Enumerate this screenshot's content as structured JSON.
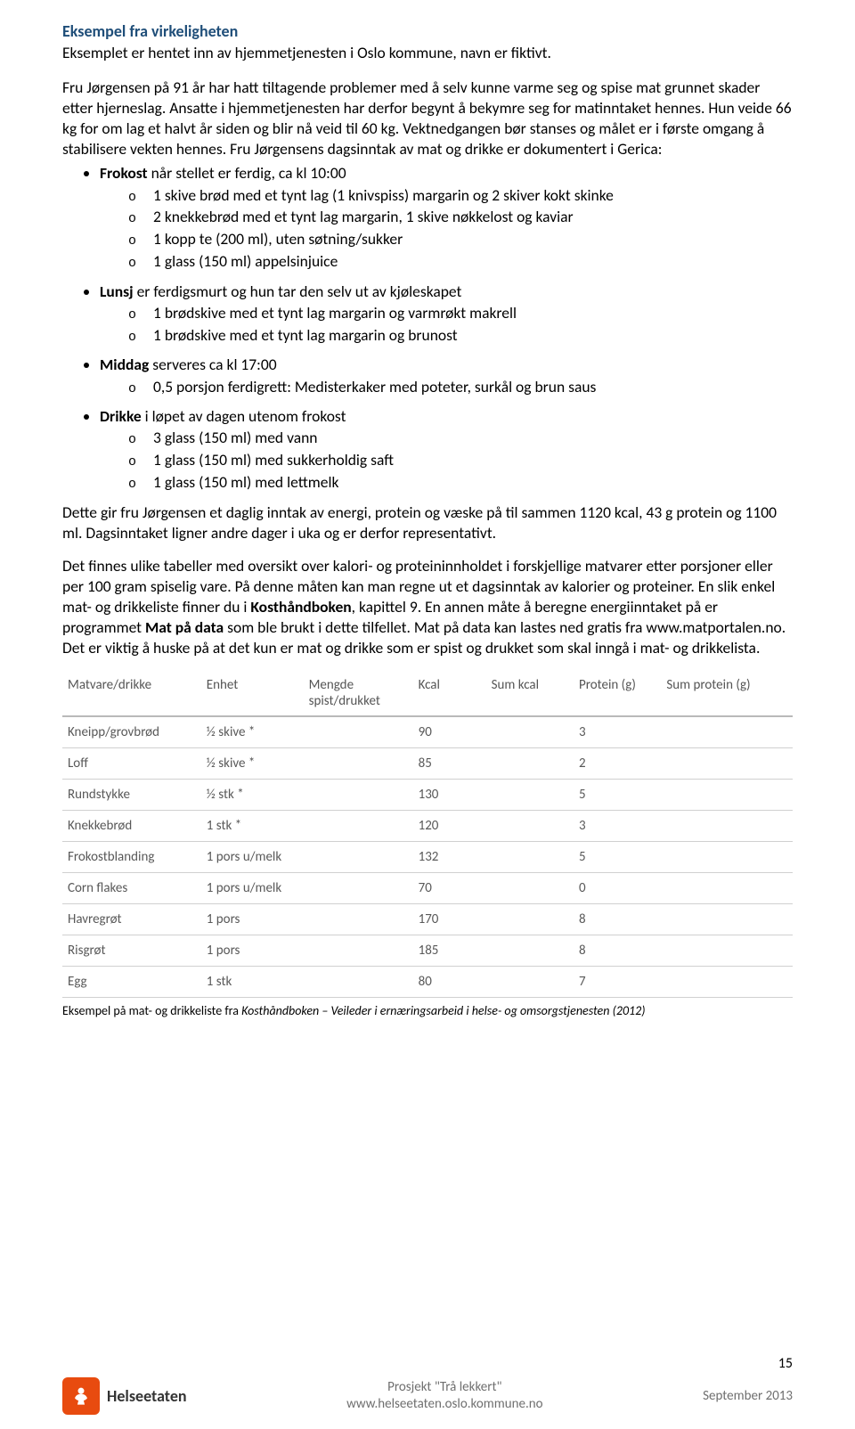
{
  "heading": "Eksempel fra virkeligheten",
  "intro": "Eksemplet er hentet inn av hjemmetjenesten i Oslo kommune, navn er fiktivt.",
  "para1": "Fru Jørgensen på 91 år har hatt tiltagende problemer med å selv kunne varme seg og spise mat grunnet skader etter hjerneslag. Ansatte i hjemmetjenesten har derfor begynt å bekymre seg for matinntaket hennes. Hun veide 66 kg for om lag et halvt år siden og blir nå veid til 60 kg. Vektnedgangen bør stanses og målet er i første omgang å stabilisere vekten hennes. Fru Jørgensens dagsinntak av mat og drikke er dokumentert i Gerica:",
  "frokost": {
    "label": "Frokost",
    "rest": " når stellet er ferdig, ca kl 10:00",
    "items": [
      "1 skive brød med et tynt lag (1 knivspiss) margarin og 2 skiver kokt skinke",
      "2 knekkebrød med et tynt lag margarin, 1 skive nøkkelost og kaviar",
      "1 kopp te (200 ml), uten søtning/sukker",
      "1 glass (150 ml) appelsinjuice"
    ]
  },
  "lunsj": {
    "label": "Lunsj",
    "rest": " er ferdigsmurt og hun tar den selv ut av kjøleskapet",
    "items": [
      "1 brødskive med et tynt lag margarin og varmrøkt makrell",
      "1 brødskive med et tynt lag margarin og brunost"
    ]
  },
  "middag": {
    "label": "Middag",
    "rest": " serveres ca kl 17:00",
    "items": [
      "0,5 porsjon ferdigrett: Medisterkaker med poteter, surkål og brun saus"
    ]
  },
  "drikke": {
    "label": "Drikke",
    "rest": " i løpet av dagen utenom frokost",
    "items": [
      "3 glass (150 ml) med vann",
      "1 glass (150 ml) med sukkerholdig saft",
      "1 glass (150 ml) med lettmelk"
    ]
  },
  "para2": "Dette gir fru Jørgensen et daglig inntak av energi, protein og væske på til sammen 1120 kcal, 43 g protein og 1100 ml. Dagsinntaket ligner andre dager i uka og er derfor representativt.",
  "para3a": "Det finnes ulike tabeller med oversikt over kalori- og proteininnholdet i forskjellige matvarer etter porsjoner eller per 100 gram spiselig vare. På denne måten kan man regne ut et dagsinntak av kalorier og proteiner. En slik enkel mat- og drikkeliste finner du i ",
  "para3_bold1": "Kosthåndboken",
  "para3b": ", kapittel 9. En annen måte å beregne energiinntaket på er programmet ",
  "para3_bold2": "Mat på data",
  "para3c": " som ble brukt i dette tilfellet. Mat på data kan lastes ned gratis fra www.matportalen.no. Det er viktig å huske på at det kun er mat og drikke som er spist og drukket som skal inngå i mat- og drikkelista.",
  "table": {
    "columns": [
      "Matvare/drikke",
      "Enhet",
      "Mengde spist/drukket",
      "Kcal",
      "Sum kcal",
      "Protein (g)",
      "Sum protein (g)"
    ],
    "col_widths": [
      "19%",
      "14%",
      "15%",
      "10%",
      "12%",
      "12%",
      "18%"
    ],
    "rows": [
      [
        "Kneipp/grovbrød",
        "½ skive *",
        "",
        "90",
        "",
        "3",
        ""
      ],
      [
        "Loff",
        "½ skive *",
        "",
        "85",
        "",
        "2",
        ""
      ],
      [
        "Rundstykke",
        "½ stk *",
        "",
        "130",
        "",
        "5",
        ""
      ],
      [
        "Knekkebrød",
        "1 stk *",
        "",
        "120",
        "",
        "3",
        ""
      ],
      [
        "Frokostblanding",
        "1 pors u/melk",
        "",
        "132",
        "",
        "5",
        ""
      ],
      [
        "Corn flakes",
        "1 pors u/melk",
        "",
        "70",
        "",
        "0",
        ""
      ],
      [
        "Havregrøt",
        "1 pors",
        "",
        "170",
        "",
        "8",
        ""
      ],
      [
        "Risgrøt",
        "1 pors",
        "",
        "185",
        "",
        "8",
        ""
      ],
      [
        "Egg",
        "1 stk",
        "",
        "80",
        "",
        "7",
        ""
      ]
    ],
    "header_bg": "#ffffff",
    "border_color": "#d0d0d0",
    "header_border_color": "#b9b9b9",
    "text_color": "#595959",
    "font_size": 15
  },
  "caption_pre": "Eksempel på mat- og drikkeliste fra ",
  "caption_ital": "Kosthåndboken – Veileder i ernæringsarbeid i helse- og omsorgstjenesten (2012)",
  "footer": {
    "brand": "Helseetaten",
    "center1": "Prosjekt \"Trå lekkert\"",
    "center2": "www.helseetaten.oslo.kommune.no",
    "right": "September 2013"
  },
  "page_number": "15",
  "colors": {
    "heading": "#1f4e79",
    "body": "#000000",
    "logo_bg": "#e84b0f",
    "footer_text": "#6f6f6f"
  }
}
